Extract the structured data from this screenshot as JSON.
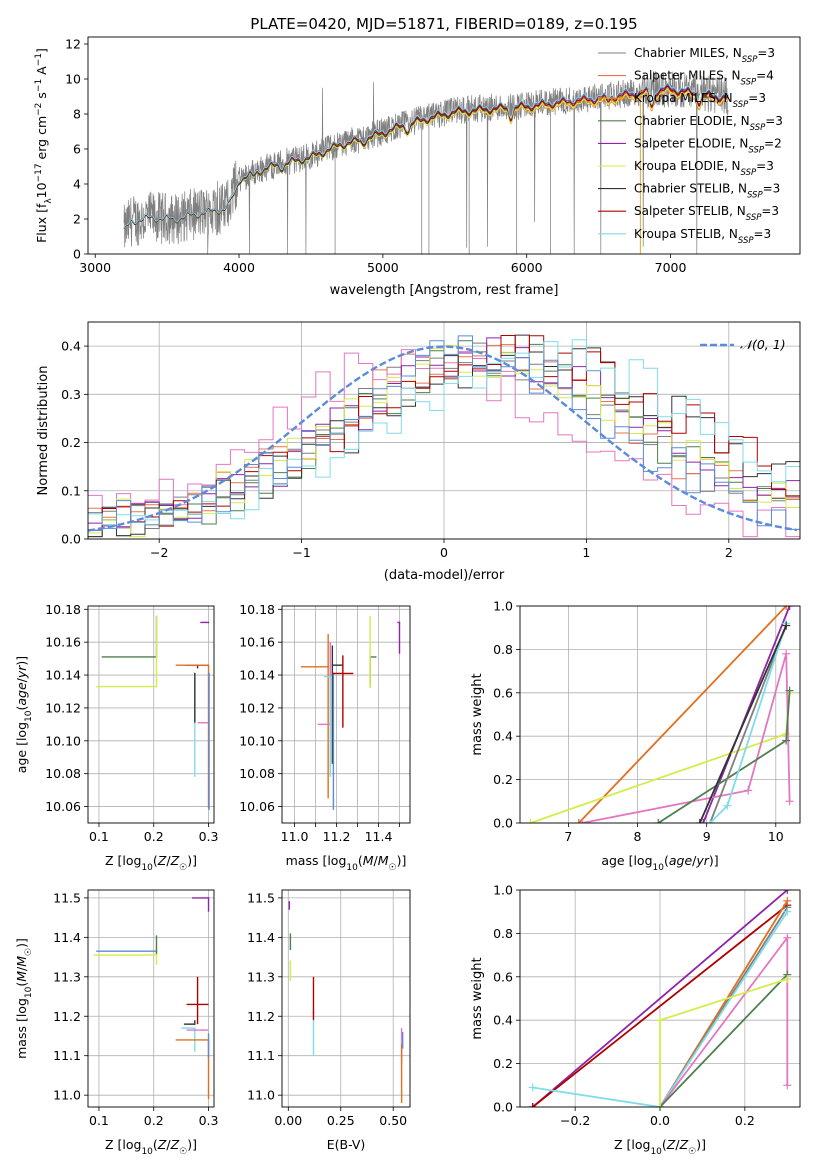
{
  "figure_title": "PLATE=0420, MJD=51871, FIBERID=0189, z=0.195",
  "colors": {
    "Chabrier MILES": "#7f7f7f",
    "Salpeter MILES": "#e8744c",
    "Kroupa MILES": "#e69f00",
    "Chabrier ELODIE": "#4f7f4f",
    "Salpeter ELODIE": "#8e24aa",
    "Kroupa ELODIE": "#d4ec4c",
    "Chabrier STELIB": "#333333",
    "Salpeter STELIB": "#b00000",
    "Kroupa STELIB": "#7fdcea",
    "normal": "#5b8bd9",
    "pink": "#e377c2",
    "blue": "#5b8bd9",
    "orange": "#e07020"
  },
  "chart_data": [
    {
      "type": "line",
      "name": "spectrum",
      "xlabel": "wavelength [Angstrom, rest frame]",
      "ylabel": "Flux [f_λ10^-17 erg cm^-2 s^-1 A^-1]",
      "ylabel_parts": [
        "Flux [f",
        "λ",
        "10",
        "−17",
        " erg cm",
        "−2",
        " s",
        "−1",
        " A",
        "−1",
        "]"
      ],
      "xlim": [
        2950,
        7900
      ],
      "ylim": [
        0,
        12.4
      ],
      "xticks": [
        3000,
        4000,
        5000,
        6000,
        7000
      ],
      "yticks": [
        0,
        2,
        4,
        6,
        8,
        10,
        12
      ],
      "legend_position": "top-right",
      "legend": [
        {
          "name": "Chabrier MILES",
          "nssp": "3"
        },
        {
          "name": "Salpeter MILES",
          "nssp": "4"
        },
        {
          "name": "Kroupa MILES",
          "nssp": "3"
        },
        {
          "name": "Chabrier ELODIE",
          "nssp": "3"
        },
        {
          "name": "Salpeter ELODIE",
          "nssp": "2"
        },
        {
          "name": "Kroupa ELODIE",
          "nssp": "3"
        },
        {
          "name": "Chabrier STELIB",
          "nssp": "3"
        },
        {
          "name": "Salpeter STELIB",
          "nssp": "3"
        },
        {
          "name": "Kroupa STELIB",
          "nssp": "3"
        }
      ],
      "nssp_prefix": "N",
      "nssp_sub": "SSP",
      "continuum": [
        [
          3200,
          1.3
        ],
        [
          3250,
          1.9
        ],
        [
          3400,
          2.1
        ],
        [
          3550,
          2.0
        ],
        [
          3700,
          2.3
        ],
        [
          3900,
          2.6
        ],
        [
          4000,
          4.3
        ],
        [
          4200,
          5.0
        ],
        [
          4500,
          5.6
        ],
        [
          4700,
          6.3
        ],
        [
          4900,
          6.7
        ],
        [
          5100,
          7.3
        ],
        [
          5300,
          7.8
        ],
        [
          5500,
          8.2
        ],
        [
          5800,
          8.4
        ],
        [
          6000,
          8.5
        ],
        [
          6300,
          8.8
        ],
        [
          6550,
          9.0
        ],
        [
          6800,
          9.3
        ],
        [
          7000,
          9.5
        ],
        [
          7200,
          9.2
        ],
        [
          7400,
          9.0
        ]
      ]
    },
    {
      "type": "line",
      "name": "residual-histogram",
      "xlabel": "(data-model)/error",
      "ylabel": "Normed distribution",
      "xlim": [
        -2.5,
        2.5
      ],
      "ylim": [
        0,
        0.45
      ],
      "xticks": [
        -2,
        -1,
        0,
        1,
        2
      ],
      "yticks": [
        0.0,
        0.1,
        0.2,
        0.3,
        0.4
      ],
      "legend": [
        "𝒩(0, 1)"
      ],
      "gaussian": {
        "mean": 0,
        "sigma": 1
      }
    },
    {
      "type": "scatter",
      "name": "age-vs-Z",
      "xlabel": "Z [log10(Z/Z☉)]",
      "ylabel": "age  [log10(age/yr)]",
      "xlim": [
        0.08,
        0.31
      ],
      "ylim": [
        10.05,
        10.182
      ],
      "xticks": [
        0.1,
        0.2,
        0.3
      ],
      "yticks": [
        10.06,
        10.08,
        10.1,
        10.12,
        10.14,
        10.16,
        10.18
      ],
      "points": [
        {
          "series": "Chabrier ELODIE",
          "x": 0.205,
          "xerr": [
            0.1,
            0.0
          ],
          "y": 10.151,
          "yerr": [
            0.0,
            0.025
          ]
        },
        {
          "series": "Kroupa ELODIE",
          "x": 0.205,
          "xerr": [
            0.11,
            0.0
          ],
          "y": 10.133,
          "yerr": [
            0.0,
            0.043
          ]
        },
        {
          "series": "Salpeter ELODIE",
          "x": 0.3,
          "xerr": [
            0.015,
            0.0
          ],
          "y": 10.172,
          "yerr": [
            0.0,
            0.0
          ]
        },
        {
          "series": "Salpeter STELIB",
          "x": 0.28,
          "xerr": [
            0.02,
            0.02
          ],
          "y": 10.146,
          "yerr": [
            0.002,
            0.0
          ]
        },
        {
          "series": "Kroupa STELIB",
          "x": 0.275,
          "xerr": [
            0.0,
            0.0
          ],
          "y": 10.138,
          "yerr": [
            0.06,
            0.0
          ]
        },
        {
          "series": "Chabrier STELIB",
          "x": 0.275,
          "xerr": [
            0.0,
            0.0
          ],
          "y": 10.141,
          "yerr": [
            0.03,
            0.0
          ]
        },
        {
          "series": "pink",
          "x": 0.29,
          "xerr": [
            0.01,
            0.01
          ],
          "y": 10.111,
          "yerr": [
            0.0,
            0.0
          ]
        },
        {
          "series": "orange",
          "x": 0.3,
          "xerr": [
            0.06,
            0.0
          ],
          "y": 10.146,
          "yerr": [
            0.087,
            0.0
          ]
        },
        {
          "series": "blue",
          "x": 0.301,
          "xerr": [
            0.0,
            0.0
          ],
          "y": 10.141,
          "yerr": [
            0.083,
            0.0
          ]
        }
      ]
    },
    {
      "type": "scatter",
      "name": "age-vs-mass",
      "xlabel": "mass [log10(M/M☉)]",
      "ylabel": "",
      "xlim": [
        10.94,
        11.55
      ],
      "ylim": [
        10.05,
        10.182
      ],
      "xticks": [
        11.0,
        11.1,
        11.2,
        11.3,
        11.4,
        11.5
      ],
      "xticklabels": [
        "11.0",
        "",
        "11.2",
        "",
        "11.4",
        ""
      ],
      "yticks": [
        10.06,
        10.08,
        10.1,
        10.12,
        10.14,
        10.16,
        10.18
      ],
      "points": [
        {
          "series": "orange",
          "x": 11.16,
          "xerr": [
            0.13,
            0.0
          ],
          "y": 10.145,
          "yerr": [
            0.08,
            0.02
          ]
        },
        {
          "series": "pink",
          "x": 11.17,
          "xerr": [
            0.06,
            0.0
          ],
          "y": 10.11,
          "yerr": [
            0.0,
            0.05
          ]
        },
        {
          "series": "Chabrier STELIB",
          "x": 11.18,
          "xerr": [
            0.0,
            0.05
          ],
          "y": 10.146,
          "yerr": [
            0.06,
            0.012
          ]
        },
        {
          "series": "blue",
          "x": 11.185,
          "xerr": [
            0.0,
            0.0
          ],
          "y": 10.141,
          "yerr": [
            0.083,
            0.0
          ]
        },
        {
          "series": "Kroupa STELIB",
          "x": 11.17,
          "xerr": [
            0.03,
            0.0
          ],
          "y": 10.139,
          "yerr": [
            0.061,
            0.0
          ]
        },
        {
          "series": "Salpeter STELIB",
          "x": 11.23,
          "xerr": [
            0.05,
            0.05
          ],
          "y": 10.141,
          "yerr": [
            0.033,
            0.011
          ]
        },
        {
          "series": "Chabrier ELODIE",
          "x": 11.36,
          "xerr": [
            0.0,
            0.03
          ],
          "y": 10.151,
          "yerr": [
            0.018,
            0.0
          ]
        },
        {
          "series": "Kroupa ELODIE",
          "x": 11.36,
          "xerr": [
            0.0,
            0.0
          ],
          "y": 10.155,
          "yerr": [
            0.023,
            0.021
          ]
        },
        {
          "series": "Salpeter ELODIE",
          "x": 11.5,
          "xerr": [
            0.01,
            0.0
          ],
          "y": 10.172,
          "yerr": [
            0.019,
            0.0
          ]
        }
      ]
    },
    {
      "type": "line",
      "name": "mass-weight-vs-age",
      "xlabel": "age  [log10(age/yr)]",
      "ylabel": "mass weight",
      "xlim": [
        6.3,
        10.35
      ],
      "ylim": [
        0.0,
        1.0
      ],
      "xticks": [
        7,
        8,
        9,
        10
      ],
      "yticks": [
        0.0,
        0.2,
        0.4,
        0.6,
        0.8,
        1.0
      ],
      "series": [
        {
          "name": "orange",
          "points": [
            [
              7.15,
              0.0
            ],
            [
              10.15,
              1.0
            ]
          ]
        },
        {
          "name": "Salpeter ELODIE",
          "points": [
            [
              8.95,
              0.0
            ],
            [
              10.2,
              1.0
            ]
          ]
        },
        {
          "name": "Kroupa ELODIE",
          "points": [
            [
              6.45,
              0.0
            ],
            [
              10.15,
              0.41
            ],
            [
              10.2,
              0.6
            ]
          ]
        },
        {
          "name": "pink",
          "points": [
            [
              7.2,
              0.0
            ],
            [
              9.6,
              0.15
            ],
            [
              10.15,
              0.78
            ],
            [
              10.2,
              0.1
            ]
          ]
        },
        {
          "name": "Chabrier ELODIE",
          "points": [
            [
              8.3,
              0.0
            ],
            [
              10.15,
              0.38
            ],
            [
              10.2,
              0.61
            ]
          ]
        },
        {
          "name": "Chabrier MILES",
          "points": [
            [
              9.05,
              0.0
            ],
            [
              10.15,
              0.91
            ]
          ]
        },
        {
          "name": "Kroupa STELIB",
          "points": [
            [
              9.05,
              0.0
            ],
            [
              9.3,
              0.08
            ],
            [
              10.15,
              0.92
            ]
          ]
        },
        {
          "name": "Chabrier STELIB",
          "points": [
            [
              8.9,
              0.0
            ],
            [
              10.15,
              0.91
            ]
          ]
        }
      ]
    },
    {
      "type": "scatter",
      "name": "mass-vs-Z",
      "xlabel": "Z [log10(Z/Z☉)]",
      "ylabel": "mass [log10(M/M☉)]",
      "xlim": [
        0.08,
        0.31
      ],
      "ylim": [
        10.97,
        11.52
      ],
      "xticks": [
        0.1,
        0.2,
        0.3
      ],
      "yticks": [
        11.0,
        11.1,
        11.2,
        11.3,
        11.4,
        11.5
      ],
      "points": [
        {
          "series": "Salpeter ELODIE",
          "x": 0.3,
          "xerr": [
            0.03,
            0.0
          ],
          "y": 11.5,
          "yerr": [
            0.035,
            0.0
          ]
        },
        {
          "series": "blue",
          "x": 0.205,
          "xerr": [
            0.11,
            0.0
          ],
          "y": 11.365,
          "yerr": [
            0.0,
            0.0
          ]
        },
        {
          "series": "Kroupa ELODIE",
          "x": 0.205,
          "xerr": [
            0.115,
            0.0
          ],
          "y": 11.355,
          "yerr": [
            0.025,
            0.02
          ]
        },
        {
          "series": "Chabrier ELODIE",
          "x": 0.205,
          "xerr": [
            0.0,
            0.0
          ],
          "y": 11.36,
          "yerr": [
            0.0,
            0.045
          ]
        },
        {
          "series": "Salpeter STELIB",
          "x": 0.28,
          "xerr": [
            0.02,
            0.02
          ],
          "y": 11.23,
          "yerr": [
            0.05,
            0.07
          ]
        },
        {
          "series": "Chabrier STELIB",
          "x": 0.275,
          "xerr": [
            0.02,
            0.0
          ],
          "y": 11.18,
          "yerr": [
            0.0,
            0.01
          ]
        },
        {
          "series": "Kroupa STELIB",
          "x": 0.275,
          "xerr": [
            0.025,
            0.0
          ],
          "y": 11.17,
          "yerr": [
            0.06,
            0.0
          ]
        },
        {
          "series": "pink",
          "x": 0.29,
          "xerr": [
            0.03,
            0.01
          ],
          "y": 11.165,
          "yerr": [
            0.0,
            0.0
          ]
        },
        {
          "series": "orange",
          "x": 0.3,
          "xerr": [
            0.06,
            0.0
          ],
          "y": 11.14,
          "yerr": [
            0.15,
            0.0
          ]
        },
        {
          "series": "blue2",
          "x": 0.3,
          "xerr": [
            0.0,
            0.0
          ],
          "y": 11.155,
          "yerr": [
            0.06,
            0.0
          ]
        }
      ]
    },
    {
      "type": "scatter",
      "name": "mass-vs-EBV",
      "xlabel": "E(B-V)",
      "ylabel": "",
      "xlim": [
        -0.03,
        0.58
      ],
      "ylim": [
        10.97,
        11.52
      ],
      "xticks": [
        0.0,
        0.25,
        0.5
      ],
      "xticklabels": [
        "0.00",
        "0.25",
        "0.50"
      ],
      "yticks": [
        11.0,
        11.1,
        11.2,
        11.3,
        11.4,
        11.5
      ],
      "points": [
        {
          "series": "Salpeter ELODIE",
          "x": 0.005,
          "y": 11.49,
          "yerr": [
            0.02,
            0.0
          ]
        },
        {
          "series": "Chabrier ELODIE",
          "x": 0.01,
          "y": 11.37,
          "yerr": [
            0.0,
            0.04
          ]
        },
        {
          "series": "Kroupa ELODIE",
          "x": 0.01,
          "y": 11.34,
          "yerr": [
            0.05,
            0.0
          ]
        },
        {
          "series": "Salpeter STELIB",
          "x": 0.12,
          "y": 11.21,
          "yerr": [
            0.02,
            0.09
          ]
        },
        {
          "series": "Kroupa STELIB",
          "x": 0.12,
          "y": 11.15,
          "yerr": [
            0.05,
            0.04
          ]
        },
        {
          "series": "pink",
          "x": 0.54,
          "y": 11.15,
          "yerr": [
            0.07,
            0.02
          ]
        },
        {
          "series": "orange",
          "x": 0.54,
          "y": 11.05,
          "yerr": [
            0.07,
            0.08
          ]
        },
        {
          "series": "blue",
          "x": 0.545,
          "y": 11.12,
          "yerr": [
            0.0,
            0.04
          ]
        }
      ]
    },
    {
      "type": "line",
      "name": "mass-weight-vs-Z",
      "xlabel": "Z [log10(Z/Z☉)]",
      "ylabel": "mass weight",
      "xlim": [
        -0.33,
        0.33
      ],
      "ylim": [
        0.0,
        1.0
      ],
      "xticks": [
        -0.2,
        0.0,
        0.2
      ],
      "xticklabels": [
        "−0.2",
        "0.0",
        "0.2"
      ],
      "yticks": [
        0.0,
        0.2,
        0.4,
        0.6,
        0.8,
        1.0
      ],
      "series": [
        {
          "name": "Salpeter ELODIE",
          "points": [
            [
              -0.3,
              0.0
            ],
            [
              0.3,
              1.0
            ]
          ]
        },
        {
          "name": "Salpeter STELIB",
          "points": [
            [
              -0.3,
              0.0
            ],
            [
              0.3,
              0.93
            ]
          ]
        },
        {
          "name": "orange",
          "points": [
            [
              0.0,
              0.0
            ],
            [
              0.3,
              0.95
            ]
          ]
        },
        {
          "name": "Chabrier MILES",
          "points": [
            [
              0.0,
              0.0
            ],
            [
              0.3,
              0.92
            ]
          ]
        },
        {
          "name": "Kroupa STELIB",
          "points": [
            [
              -0.3,
              0.09
            ],
            [
              0.0,
              0.0
            ],
            [
              0.3,
              0.9
            ]
          ]
        },
        {
          "name": "pink",
          "points": [
            [
              0.0,
              0.0
            ],
            [
              0.3,
              0.78
            ],
            [
              0.3,
              0.1
            ]
          ]
        },
        {
          "name": "Chabrier ELODIE",
          "points": [
            [
              0.0,
              0.0
            ],
            [
              0.3,
              0.61
            ]
          ]
        },
        {
          "name": "Kroupa ELODIE",
          "points": [
            [
              0.0,
              0.0
            ],
            [
              0.0,
              0.4
            ],
            [
              0.3,
              0.59
            ]
          ]
        }
      ]
    }
  ]
}
